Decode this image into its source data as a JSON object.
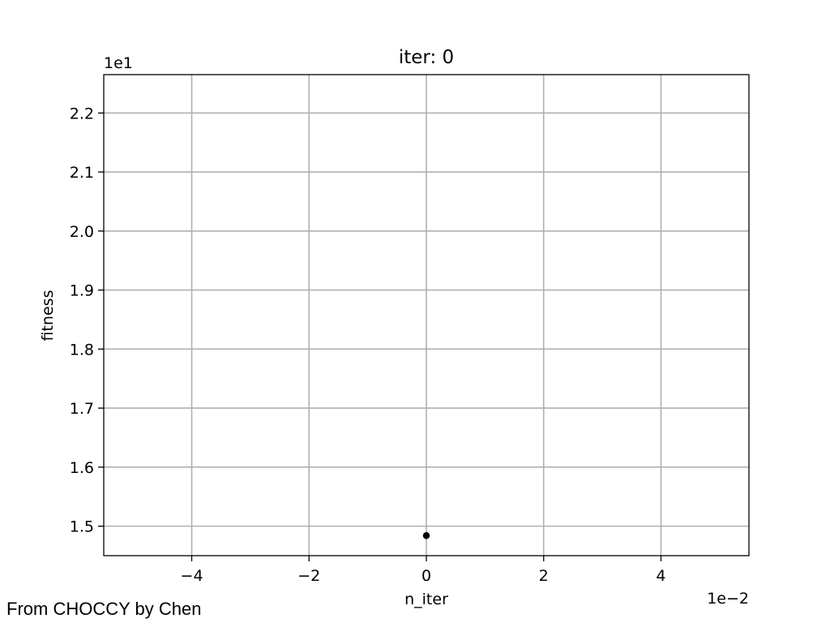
{
  "chart_data": {
    "type": "scatter",
    "title": "iter: 0",
    "xlabel": "n_iter",
    "ylabel": "fitness",
    "x_offset_label": "1e−2",
    "y_offset_label": "1e1",
    "xlim": [
      -5.5,
      5.5
    ],
    "ylim": [
      1.45,
      2.265
    ],
    "x_ticks": [
      -4,
      -2,
      0,
      2,
      4
    ],
    "x_tick_labels": [
      "−4",
      "−2",
      "0",
      "2",
      "4"
    ],
    "y_ticks": [
      1.5,
      1.6,
      1.7,
      1.8,
      1.9,
      2.0,
      2.1,
      2.2
    ],
    "y_tick_labels": [
      "1.5",
      "1.6",
      "1.7",
      "1.8",
      "1.9",
      "2.0",
      "2.1",
      "2.2"
    ],
    "grid": true,
    "points": [
      {
        "x": 0,
        "y": 1.484
      }
    ],
    "point_color": "#000000",
    "grid_color": "#b0b0b0"
  },
  "footer": {
    "credit": "From CHOCCY by Chen"
  }
}
